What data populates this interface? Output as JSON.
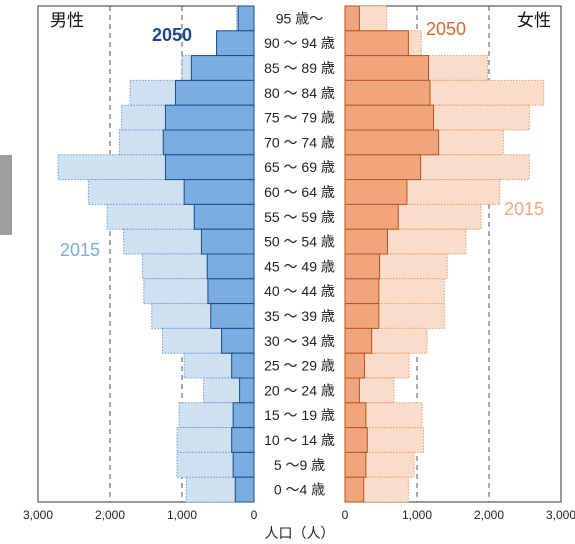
{
  "chart_data": {
    "type": "bar",
    "orientation": "horizontal",
    "layout": "population-pyramid",
    "categories": [
      "95 歳～",
      "90 ～ 94 歳",
      "85 ～ 89 歳",
      "80 ～ 84 歳",
      "75 ～ 79 歳",
      "70 ～ 74 歳",
      "65 ～ 69 歳",
      "60 ～ 64 歳",
      "55 ～ 59 歳",
      "50 ～ 54 歳",
      "45 ～ 49 歳",
      "40 ～ 44 歳",
      "35 ～ 39 歳",
      "30 ～ 34 歳",
      "25 ～ 29 歳",
      "20 ～ 24 歳",
      "15 ～ 19 歳",
      "10 ～ 14 歳",
      "5 ～9 歳",
      "0 ～4 歳"
    ],
    "male_label": "男性",
    "female_label": "女性",
    "series": [
      {
        "name": "2050",
        "side": "male",
        "color": "#7aade2",
        "stroke": "#1b4a8a",
        "values": [
          220,
          520,
          870,
          1090,
          1230,
          1260,
          1230,
          970,
          830,
          730,
          650,
          640,
          600,
          450,
          310,
          200,
          290,
          310,
          290,
          260
        ]
      },
      {
        "name": "2015",
        "side": "male",
        "color": "#cfe1f1",
        "stroke": "#6f9bcf",
        "values": [
          240,
          360,
          1000,
          1720,
          1840,
          1870,
          2720,
          2300,
          2040,
          1810,
          1550,
          1530,
          1420,
          1270,
          970,
          700,
          1040,
          1070,
          1070,
          940
        ]
      },
      {
        "name": "2050",
        "side": "female",
        "color": "#f0a57c",
        "stroke": "#b9531d",
        "values": [
          200,
          880,
          1160,
          1180,
          1230,
          1300,
          1050,
          860,
          740,
          590,
          480,
          470,
          470,
          370,
          270,
          200,
          290,
          310,
          290,
          260
        ]
      },
      {
        "name": "2015",
        "side": "female",
        "color": "#fadcca",
        "stroke": "#e39a70",
        "values": [
          580,
          1060,
          1980,
          2760,
          2560,
          2200,
          2560,
          2150,
          1890,
          1680,
          1420,
          1380,
          1380,
          1140,
          890,
          680,
          1070,
          1090,
          960,
          880
        ]
      }
    ],
    "labels": {
      "male_2050": "2050",
      "male_2015": "2015",
      "female_2050": "2050",
      "female_2015": "2015"
    },
    "x_ticks_male": [
      "3,000",
      "2,000",
      "1,000",
      "0"
    ],
    "x_ticks_female": [
      "0",
      "1,000",
      "2,000",
      "3,000"
    ],
    "xlim": [
      0,
      3000
    ],
    "xlabel": "人口（人）",
    "grid": "dashed at 1,000 and 2,000",
    "colors": {
      "male_dark": "#1b4a8a",
      "female_dark": "#d9672c",
      "male_light_text": "#7aaee0",
      "female_light_text": "#f3a77a"
    }
  }
}
